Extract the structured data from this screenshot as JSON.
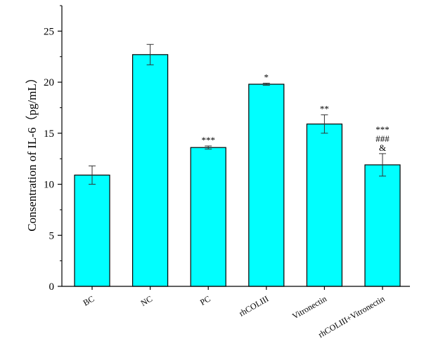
{
  "chart_data": {
    "type": "bar",
    "title": "",
    "xlabel": "",
    "ylabel": "Consentration of IL-6（pg/mL）",
    "ylim": [
      0,
      27.5
    ],
    "yticks": [
      0,
      5,
      10,
      15,
      20,
      25
    ],
    "grid": false,
    "bar_color": "#00ffff",
    "bar_edge_color": "#000000",
    "categories": [
      "BC",
      "NC",
      "PC",
      "rhCOLIII",
      "Vitronectin",
      "rhCOLIII+Vitronectin"
    ],
    "values": [
      10.9,
      22.7,
      13.6,
      19.8,
      15.9,
      11.9
    ],
    "errors": [
      0.9,
      1.0,
      0.15,
      0.1,
      0.9,
      1.1
    ],
    "annotations": [
      [],
      [],
      [
        "***"
      ],
      [
        "*"
      ],
      [
        "**"
      ],
      [
        "***",
        "###",
        "&"
      ]
    ]
  }
}
